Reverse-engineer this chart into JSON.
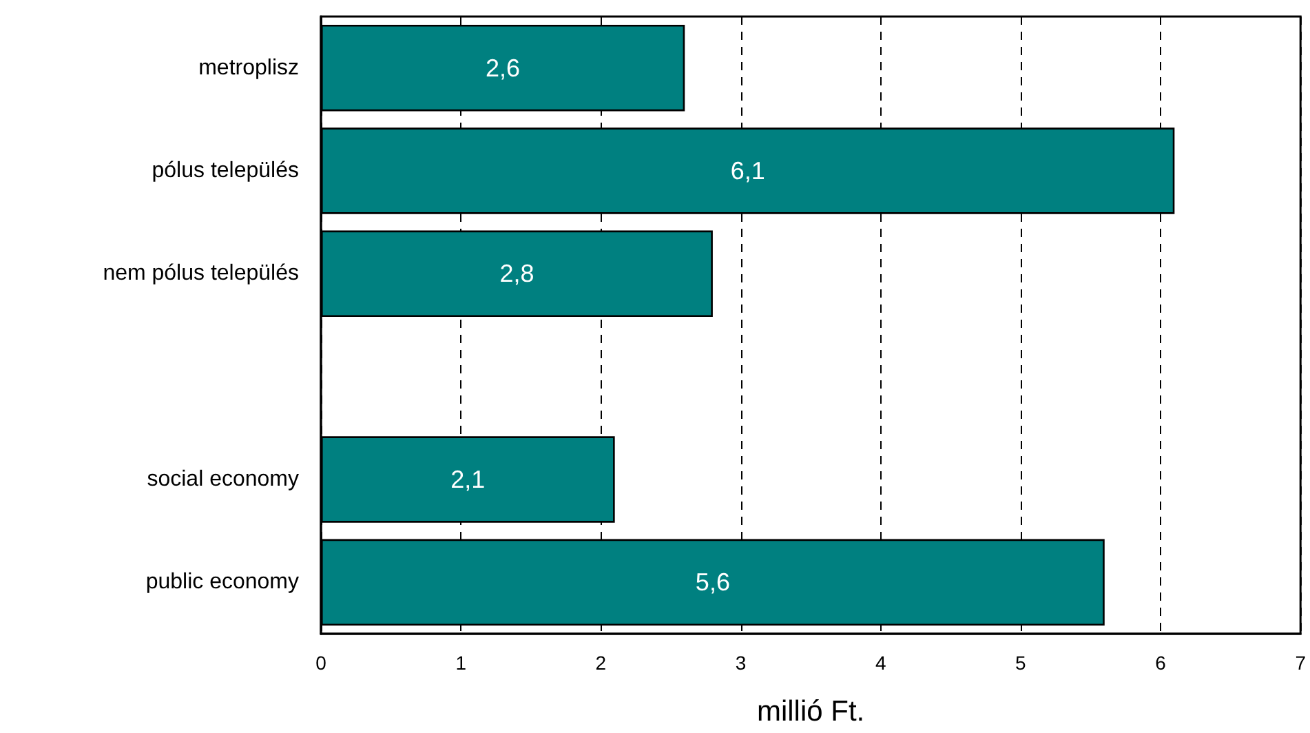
{
  "chart_data": {
    "type": "bar",
    "orientation": "horizontal",
    "categories": [
      "metroplisz",
      "pólus település",
      "nem pólus település",
      null,
      "social economy",
      "public economy"
    ],
    "values": [
      2.6,
      6.1,
      2.8,
      null,
      2.1,
      5.6
    ],
    "color": "#008080",
    "value_labels": [
      "2,6",
      "6,1",
      "2,8",
      null,
      "2,1",
      "5,6"
    ],
    "xlabel": "millió Ft.",
    "xlim": [
      0,
      7
    ],
    "xticks": [
      0,
      1,
      2,
      3,
      4,
      5,
      6,
      7
    ],
    "grid": "x"
  }
}
